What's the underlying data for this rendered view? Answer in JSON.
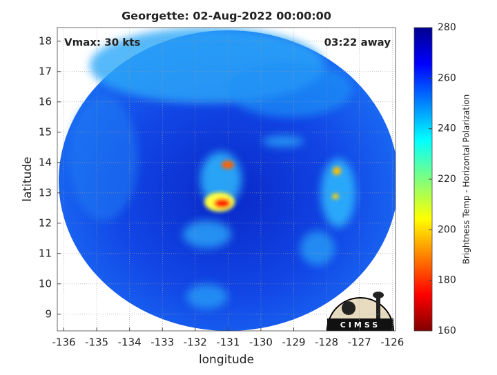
{
  "chart_data": {
    "type": "heatmap",
    "title": "Georgette: 02-Aug-2022 00:00:00",
    "annotations": [
      "Vmax: 30 kts",
      "03:22 away"
    ],
    "xlabel": "longitude",
    "ylabel": "latitude",
    "xlim": [
      -136.2,
      -125.9
    ],
    "xticks": [
      -136,
      -135,
      -134,
      -133,
      -132,
      -131,
      -130,
      -129,
      -128,
      -127,
      -126
    ],
    "ylim": [
      8.45,
      18.45
    ],
    "yticks": [
      9,
      10,
      11,
      12,
      13,
      14,
      15,
      16,
      17,
      18
    ],
    "grid": true,
    "colorbar": {
      "label": "Brightness Temp - Horizontal Polarization",
      "lim": [
        160,
        280
      ],
      "ticks": [
        160,
        180,
        200,
        220,
        240,
        260,
        280
      ]
    },
    "logo": "CIMSS"
  }
}
